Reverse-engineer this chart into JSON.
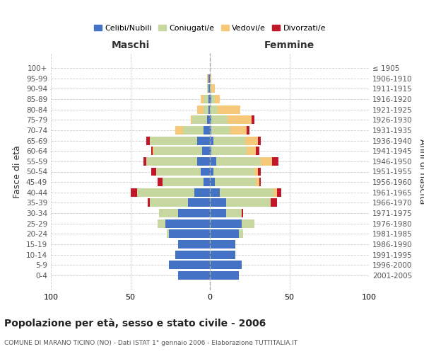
{
  "age_groups": [
    "0-4",
    "5-9",
    "10-14",
    "15-19",
    "20-24",
    "25-29",
    "30-34",
    "35-39",
    "40-44",
    "45-49",
    "50-54",
    "55-59",
    "60-64",
    "65-69",
    "70-74",
    "75-79",
    "80-84",
    "85-89",
    "90-94",
    "95-99",
    "100+"
  ],
  "birth_years": [
    "2001-2005",
    "1996-2000",
    "1991-1995",
    "1986-1990",
    "1981-1985",
    "1976-1980",
    "1971-1975",
    "1966-1970",
    "1961-1965",
    "1956-1960",
    "1951-1955",
    "1946-1950",
    "1941-1945",
    "1936-1940",
    "1931-1935",
    "1926-1930",
    "1921-1925",
    "1916-1920",
    "1911-1915",
    "1906-1910",
    "≤ 1905"
  ],
  "males": {
    "celibe": [
      20,
      26,
      22,
      20,
      26,
      28,
      20,
      14,
      10,
      4,
      6,
      8,
      5,
      8,
      4,
      2,
      1,
      1,
      1,
      1,
      0
    ],
    "coniugato": [
      0,
      0,
      0,
      0,
      1,
      5,
      12,
      24,
      36,
      26,
      28,
      32,
      30,
      30,
      13,
      9,
      3,
      3,
      1,
      0,
      0
    ],
    "vedovo": [
      0,
      0,
      0,
      0,
      0,
      0,
      0,
      0,
      0,
      0,
      0,
      0,
      1,
      0,
      5,
      1,
      4,
      2,
      0,
      1,
      0
    ],
    "divorziato": [
      0,
      0,
      0,
      0,
      0,
      0,
      0,
      1,
      4,
      3,
      3,
      2,
      1,
      2,
      0,
      0,
      0,
      0,
      0,
      0,
      0
    ]
  },
  "females": {
    "nubile": [
      18,
      20,
      16,
      16,
      18,
      20,
      10,
      10,
      6,
      3,
      2,
      4,
      1,
      2,
      1,
      1,
      0,
      1,
      0,
      0,
      0
    ],
    "coniugata": [
      0,
      0,
      0,
      0,
      3,
      8,
      10,
      28,
      34,
      26,
      26,
      28,
      22,
      20,
      12,
      10,
      5,
      2,
      1,
      0,
      0
    ],
    "vedova": [
      0,
      0,
      0,
      0,
      0,
      0,
      0,
      0,
      2,
      2,
      2,
      7,
      6,
      8,
      10,
      15,
      14,
      3,
      2,
      1,
      0
    ],
    "divorziata": [
      0,
      0,
      0,
      0,
      0,
      0,
      1,
      4,
      3,
      1,
      2,
      4,
      2,
      2,
      2,
      2,
      0,
      0,
      0,
      0,
      0
    ]
  },
  "color_celibe": "#4472C4",
  "color_coniugato": "#C7D7A0",
  "color_vedovo": "#F5C87A",
  "color_divorziato": "#C0172A",
  "title": "Popolazione per età, sesso e stato civile - 2006",
  "subtitle": "COMUNE DI MARANO TICINO (NO) - Dati ISTAT 1° gennaio 2006 - Elaborazione TUTTITALIA.IT",
  "xlabel_left": "Maschi",
  "xlabel_right": "Femmine",
  "ylabel_left": "Fasce di età",
  "ylabel_right": "Anni di nascita",
  "xlim": 100,
  "bg_color": "#ffffff",
  "grid_color": "#cccccc",
  "bar_height": 0.82
}
